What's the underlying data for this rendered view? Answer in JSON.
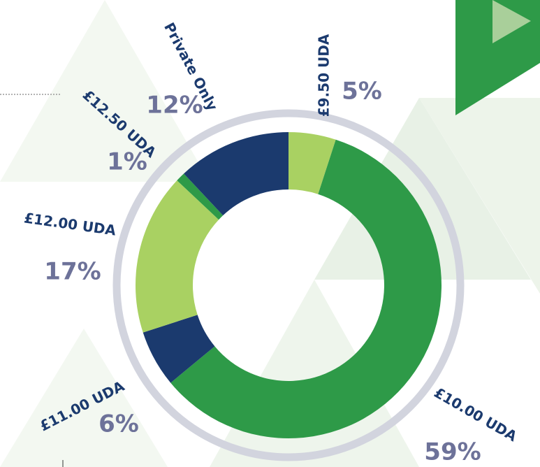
{
  "chart_data": {
    "type": "donut",
    "categories": [
      "£9.50 UDA",
      "£10.00 UDA",
      "£11.00 UDA",
      "£12.00 UDA",
      "£12.50 UDA",
      "Private Only"
    ],
    "values": [
      5,
      59,
      6,
      17,
      1,
      12
    ],
    "value_labels": [
      "5%",
      "59%",
      "6%",
      "17%",
      "1%",
      "12%"
    ],
    "colors": [
      "#a9d162",
      "#2e9a48",
      "#1b3a6e",
      "#a9d162",
      "#2e9a48",
      "#1b3a6e"
    ]
  }
}
